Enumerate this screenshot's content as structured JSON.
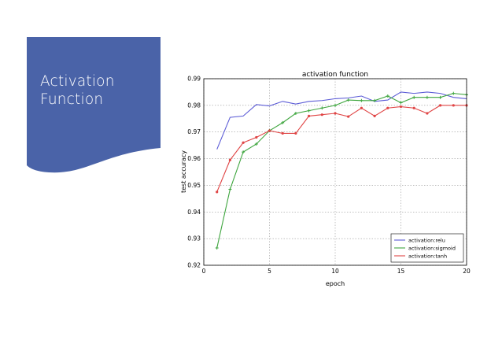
{
  "slide": {
    "title_line1": "Activation",
    "title_line2": "Function",
    "banner_color": "#4a63a8"
  },
  "chart_data": {
    "type": "line",
    "title": "activation function",
    "xlabel": "epoch",
    "ylabel": "test accuracy",
    "xlim": [
      0,
      20
    ],
    "ylim": [
      0.92,
      0.99
    ],
    "x_ticks": [
      "0",
      "5",
      "10",
      "15",
      "20"
    ],
    "y_ticks": [
      "0.92",
      "0.93",
      "0.94",
      "0.95",
      "0.96",
      "0.97",
      "0.98",
      "0.99"
    ],
    "grid": true,
    "legend_position": "lower-right",
    "x": [
      1,
      2,
      3,
      4,
      5,
      6,
      7,
      8,
      9,
      10,
      11,
      12,
      13,
      14,
      15,
      16,
      17,
      18,
      19,
      20
    ],
    "series": [
      {
        "name": "activation:relu",
        "color": "#5b5bd6",
        "marker": "none",
        "values": [
          0.9635,
          0.9755,
          0.976,
          0.9803,
          0.9798,
          0.9815,
          0.9805,
          0.9815,
          0.9818,
          0.9825,
          0.9828,
          0.9835,
          0.9815,
          0.982,
          0.985,
          0.9845,
          0.985,
          0.9845,
          0.983,
          0.9825
        ]
      },
      {
        "name": "activation:sigmoid",
        "color": "#3fa63f",
        "marker": "plus",
        "values": [
          0.9265,
          0.9485,
          0.9625,
          0.9655,
          0.9705,
          0.9735,
          0.977,
          0.978,
          0.979,
          0.98,
          0.982,
          0.9818,
          0.9818,
          0.9835,
          0.981,
          0.983,
          0.983,
          0.983,
          0.9845,
          0.984
        ]
      },
      {
        "name": "activation:tanh",
        "color": "#e04545",
        "marker": "star",
        "values": [
          0.9475,
          0.9595,
          0.966,
          0.968,
          0.9705,
          0.9695,
          0.9695,
          0.976,
          0.9765,
          0.977,
          0.9758,
          0.979,
          0.976,
          0.979,
          0.9795,
          0.979,
          0.977,
          0.98,
          0.98,
          0.98
        ]
      }
    ]
  }
}
